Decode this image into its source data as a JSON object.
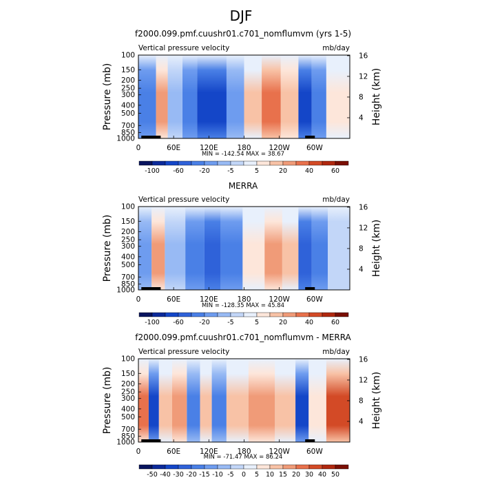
{
  "page": {
    "title": "DJF"
  },
  "colors": {
    "ramp": [
      "#08145e",
      "#0c2a9a",
      "#1446c8",
      "#2f62d9",
      "#4a80e6",
      "#6e9cef",
      "#98baf4",
      "#c2d6f8",
      "#e8f0fc",
      "#fde6da",
      "#f8c2a6",
      "#f09b78",
      "#e8714c",
      "#d34a26",
      "#b0280f",
      "#7a0f04"
    ]
  },
  "chart_data": [
    {
      "type": "heatmap",
      "title": "f2000.099.pmf.cuushr01.c701_nomflumvm (yrs 1-5)",
      "subtitle_left": "Vertical pressure velocity",
      "subtitle_right": "mb/day",
      "ylabel": "Pressure (mb)",
      "ylabel_right": "Height (km)",
      "x_ticks": [
        "0",
        "60E",
        "120E",
        "180",
        "120W",
        "60W"
      ],
      "x_tick_lon": [
        0,
        60,
        120,
        180,
        240,
        300
      ],
      "xlim": [
        0,
        360
      ],
      "y_ticks": [
        "100",
        "150",
        "200",
        "250",
        "300",
        "400",
        "500",
        "700",
        "850",
        "1000"
      ],
      "y_tick_p": [
        100,
        150,
        200,
        250,
        300,
        400,
        500,
        700,
        850,
        1000
      ],
      "ylim": [
        1000,
        100
      ],
      "y_right_ticks": [
        "4",
        "8",
        "12",
        "16"
      ],
      "y_right_km": [
        4,
        8,
        12,
        16
      ],
      "stats": "MIN = -142.54   MAX =  38.67",
      "colorbar_labels": [
        "-100",
        "-60",
        "-20",
        "-5",
        "5",
        "20",
        "40",
        "60"
      ],
      "colorbar_levels": [
        -120,
        -100,
        -80,
        -60,
        -40,
        -20,
        -10,
        -5,
        0,
        5,
        10,
        20,
        30,
        40,
        50,
        60
      ],
      "field": [
        {
          "lon": 20,
          "val": -40
        },
        {
          "lon": 40,
          "val": 20
        },
        {
          "lon": 60,
          "val": -10
        },
        {
          "lon": 90,
          "val": -40
        },
        {
          "lon": 110,
          "val": -80
        },
        {
          "lon": 135,
          "val": -80
        },
        {
          "lon": 165,
          "val": -20
        },
        {
          "lon": 195,
          "val": 10
        },
        {
          "lon": 225,
          "val": 30
        },
        {
          "lon": 260,
          "val": 15
        },
        {
          "lon": 285,
          "val": -80
        },
        {
          "lon": 305,
          "val": -40
        },
        {
          "lon": 335,
          "val": 5
        }
      ]
    },
    {
      "type": "heatmap",
      "title": "MERRA",
      "subtitle_left": "Vertical pressure velocity",
      "subtitle_right": "mb/day",
      "ylabel": "Pressure (mb)",
      "ylabel_right": "Height (km)",
      "x_ticks": [
        "0",
        "60E",
        "120E",
        "180",
        "120W",
        "60W"
      ],
      "x_tick_lon": [
        0,
        60,
        120,
        180,
        240,
        300
      ],
      "xlim": [
        0,
        360
      ],
      "y_ticks": [
        "100",
        "150",
        "200",
        "250",
        "300",
        "400",
        "500",
        "700",
        "850",
        "1000"
      ],
      "y_tick_p": [
        100,
        150,
        200,
        250,
        300,
        400,
        500,
        700,
        850,
        1000
      ],
      "ylim": [
        1000,
        100
      ],
      "y_right_ticks": [
        "4",
        "8",
        "12",
        "16"
      ],
      "y_right_km": [
        4,
        8,
        12,
        16
      ],
      "stats": "MIN = -128.35   MAX =  45.84",
      "colorbar_labels": [
        "-100",
        "-60",
        "-20",
        "-5",
        "5",
        "20",
        "40",
        "60"
      ],
      "colorbar_levels": [
        -120,
        -100,
        -80,
        -60,
        -40,
        -20,
        -10,
        -5,
        0,
        5,
        10,
        20,
        30,
        40,
        50,
        60
      ],
      "field": [
        {
          "lon": 15,
          "val": -20
        },
        {
          "lon": 30,
          "val": 20
        },
        {
          "lon": 60,
          "val": -10
        },
        {
          "lon": 100,
          "val": -40
        },
        {
          "lon": 125,
          "val": -60
        },
        {
          "lon": 155,
          "val": -40
        },
        {
          "lon": 200,
          "val": 5
        },
        {
          "lon": 230,
          "val": 20
        },
        {
          "lon": 260,
          "val": 10
        },
        {
          "lon": 285,
          "val": -60
        },
        {
          "lon": 305,
          "val": -30
        },
        {
          "lon": 340,
          "val": -5
        }
      ]
    },
    {
      "type": "heatmap",
      "title": "f2000.099.pmf.cuushr01.c701_nomflumvm - MERRA",
      "subtitle_left": "Vertical pressure velocity",
      "subtitle_right": "mb/day",
      "ylabel": "Pressure (mb)",
      "ylabel_right": "Height (km)",
      "x_ticks": [
        "0",
        "60E",
        "120E",
        "180",
        "120W",
        "60W"
      ],
      "x_tick_lon": [
        0,
        60,
        120,
        180,
        240,
        300
      ],
      "xlim": [
        0,
        360
      ],
      "y_ticks": [
        "100",
        "150",
        "200",
        "250",
        "300",
        "400",
        "500",
        "700",
        "850",
        "1000"
      ],
      "y_tick_p": [
        100,
        150,
        200,
        250,
        300,
        400,
        500,
        700,
        850,
        1000
      ],
      "ylim": [
        1000,
        100
      ],
      "y_right_ticks": [
        "4",
        "8",
        "12",
        "16"
      ],
      "y_right_km": [
        4,
        8,
        12,
        16
      ],
      "stats": "MIN = -71.47   MAX =  86.24",
      "colorbar_labels": [
        "-50",
        "-40",
        "-30",
        "-20",
        "-15",
        "-10",
        "-5",
        "0",
        "5",
        "10",
        "15",
        "20",
        "30",
        "40",
        "50"
      ],
      "colorbar_levels": [
        -60,
        -50,
        -40,
        -30,
        -20,
        -15,
        -10,
        -5,
        0,
        5,
        10,
        15,
        20,
        30,
        40,
        50
      ],
      "field": [
        {
          "lon": 10,
          "val": 20
        },
        {
          "lon": 25,
          "val": -40
        },
        {
          "lon": 45,
          "val": 10
        },
        {
          "lon": 70,
          "val": 15
        },
        {
          "lon": 95,
          "val": -20
        },
        {
          "lon": 115,
          "val": 10
        },
        {
          "lon": 135,
          "val": -20
        },
        {
          "lon": 165,
          "val": 10
        },
        {
          "lon": 210,
          "val": 15
        },
        {
          "lon": 255,
          "val": 10
        },
        {
          "lon": 280,
          "val": -40
        },
        {
          "lon": 300,
          "val": 5
        },
        {
          "lon": 340,
          "val": 30
        }
      ]
    }
  ]
}
